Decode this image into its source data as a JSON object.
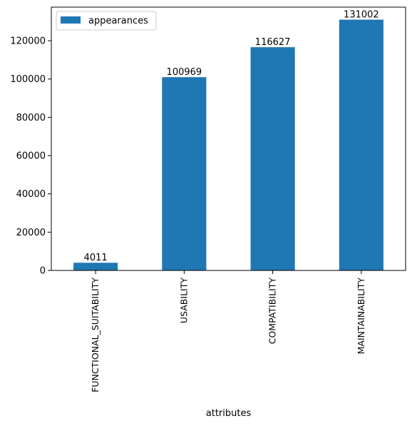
{
  "chart_data": {
    "type": "bar",
    "categories": [
      "FUNCTIONAL_SUITABILITY",
      "USABILITY",
      "COMPATIBILITY",
      "MAINTAINABILITY"
    ],
    "series": [
      {
        "name": "appearances",
        "values": [
          4011,
          100969,
          116627,
          131002
        ],
        "color": "#1f77b4"
      }
    ],
    "data_labels": [
      "4011",
      "100969",
      "116627",
      "131002"
    ],
    "xlabel": "attributes",
    "ylabel": "",
    "ylim": [
      0,
      137552
    ],
    "yticks": [
      0,
      20000,
      40000,
      60000,
      80000,
      100000,
      120000
    ],
    "ytick_labels": [
      "0",
      "20000",
      "40000",
      "60000",
      "80000",
      "100000",
      "120000"
    ],
    "grid": false,
    "legend": {
      "position": "top-left",
      "label": "appearances"
    }
  }
}
